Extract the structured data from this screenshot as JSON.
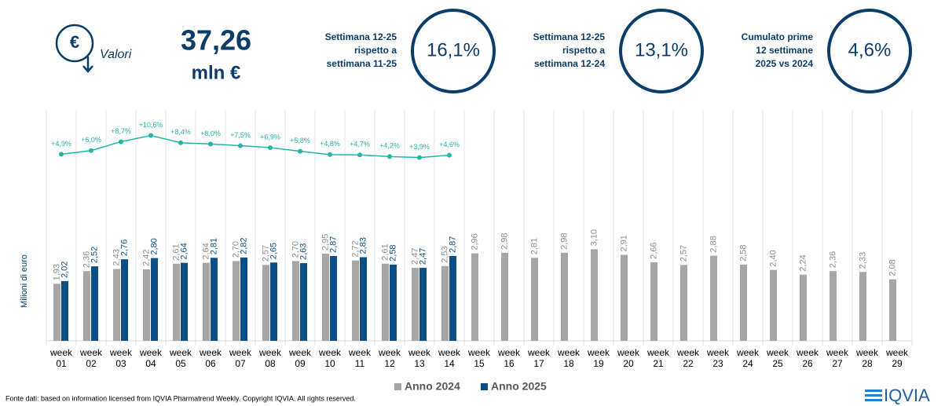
{
  "header": {
    "icon_symbol": "€",
    "icon_label": "Valori",
    "total": "37,26",
    "unit": "mln €"
  },
  "kpis": [
    {
      "label": [
        "Settimana 12-25",
        "rispetto a",
        "settimana 11-25"
      ],
      "value": "16,1%"
    },
    {
      "label": [
        "Settimana 12-25",
        "rispetto a",
        "settimana 12-24"
      ],
      "value": "13,1%"
    },
    {
      "label": [
        "Cumulato prime",
        "12 settimane",
        "2025 vs 2024"
      ],
      "value": "4,6%"
    }
  ],
  "chart_data": {
    "type": "bar",
    "y_label": "Milioni di euro",
    "categories": [
      "week 01",
      "week 02",
      "week 03",
      "week 04",
      "week 05",
      "week 06",
      "week 07",
      "week 08",
      "week 09",
      "week 10",
      "week 11",
      "week 12",
      "week 13",
      "week 14",
      "week 15",
      "week 16",
      "week 17",
      "week 18",
      "week 19",
      "week 20",
      "week 21",
      "week 22",
      "week 23",
      "week 24",
      "week 25",
      "week 26",
      "week 27",
      "week 28",
      "week 29"
    ],
    "series": [
      {
        "name": "Anno 2024",
        "color": "#a6a6a6",
        "values": [
          1.93,
          2.36,
          2.43,
          2.42,
          2.61,
          2.64,
          2.7,
          2.57,
          2.7,
          2.95,
          2.72,
          2.61,
          2.47,
          2.53,
          2.96,
          2.98,
          2.81,
          2.98,
          3.1,
          2.91,
          2.66,
          2.57,
          2.88,
          2.58,
          2.4,
          2.24,
          2.36,
          2.33,
          2.08
        ],
        "value_labels": [
          "1,93",
          "2,36",
          "2,43",
          "2,42",
          "2,61",
          "2,64",
          "2,70",
          "2,57",
          "2,70",
          "2,95",
          "2,72",
          "2,61",
          "2,47",
          "2,53",
          "2,96",
          "2,98",
          "2,81",
          "2,98",
          "3,10",
          "2,91",
          "2,66",
          "2,57",
          "2,88",
          "2,58",
          "2,40",
          "2,24",
          "2,36",
          "2,33",
          "2,08"
        ]
      },
      {
        "name": "Anno 2025",
        "color": "#0b4f84",
        "values": [
          2.02,
          2.52,
          2.76,
          2.8,
          2.64,
          2.81,
          2.82,
          2.65,
          2.63,
          2.87,
          2.83,
          2.58,
          2.47,
          2.87,
          null,
          null,
          null,
          null,
          null,
          null,
          null,
          null,
          null,
          null,
          null,
          null,
          null,
          null,
          null
        ],
        "value_labels": [
          "2,02",
          "2,52",
          "2,76",
          "2,80",
          "2,64",
          "2,81",
          "2,82",
          "2,65",
          "2,63",
          "2,87",
          "2,83",
          "2,58",
          "2,47",
          "2,87",
          null,
          null,
          null,
          null,
          null,
          null,
          null,
          null,
          null,
          null,
          null,
          null,
          null,
          null,
          null
        ]
      }
    ],
    "growth": {
      "type": "line",
      "axis": "y2",
      "color": "#22b5a3",
      "values": [
        4.9,
        6.0,
        8.7,
        10.6,
        8.4,
        8.0,
        7.5,
        6.9,
        5.8,
        4.8,
        4.7,
        4.2,
        3.9,
        4.6
      ],
      "value_labels": [
        "+4,9%",
        "+6,0%",
        "+8,7%",
        "+10,6%",
        "+8,4%",
        "+8,0%",
        "+7,5%",
        "+6,9%",
        "+5,8%",
        "+4,8%",
        "+4,7%",
        "+4,2%",
        "+3,9%",
        "+4,6%"
      ]
    },
    "ylim": [
      0,
      8
    ],
    "y2lim": [
      0,
      20
    ],
    "legend": "bottom"
  },
  "footer": {
    "source": "Fonte dati: based on information licensed from IQVIA Pharmatrend Weekly. Copyright IQVIA. All rights reserved.",
    "logo": "IQVIA"
  }
}
